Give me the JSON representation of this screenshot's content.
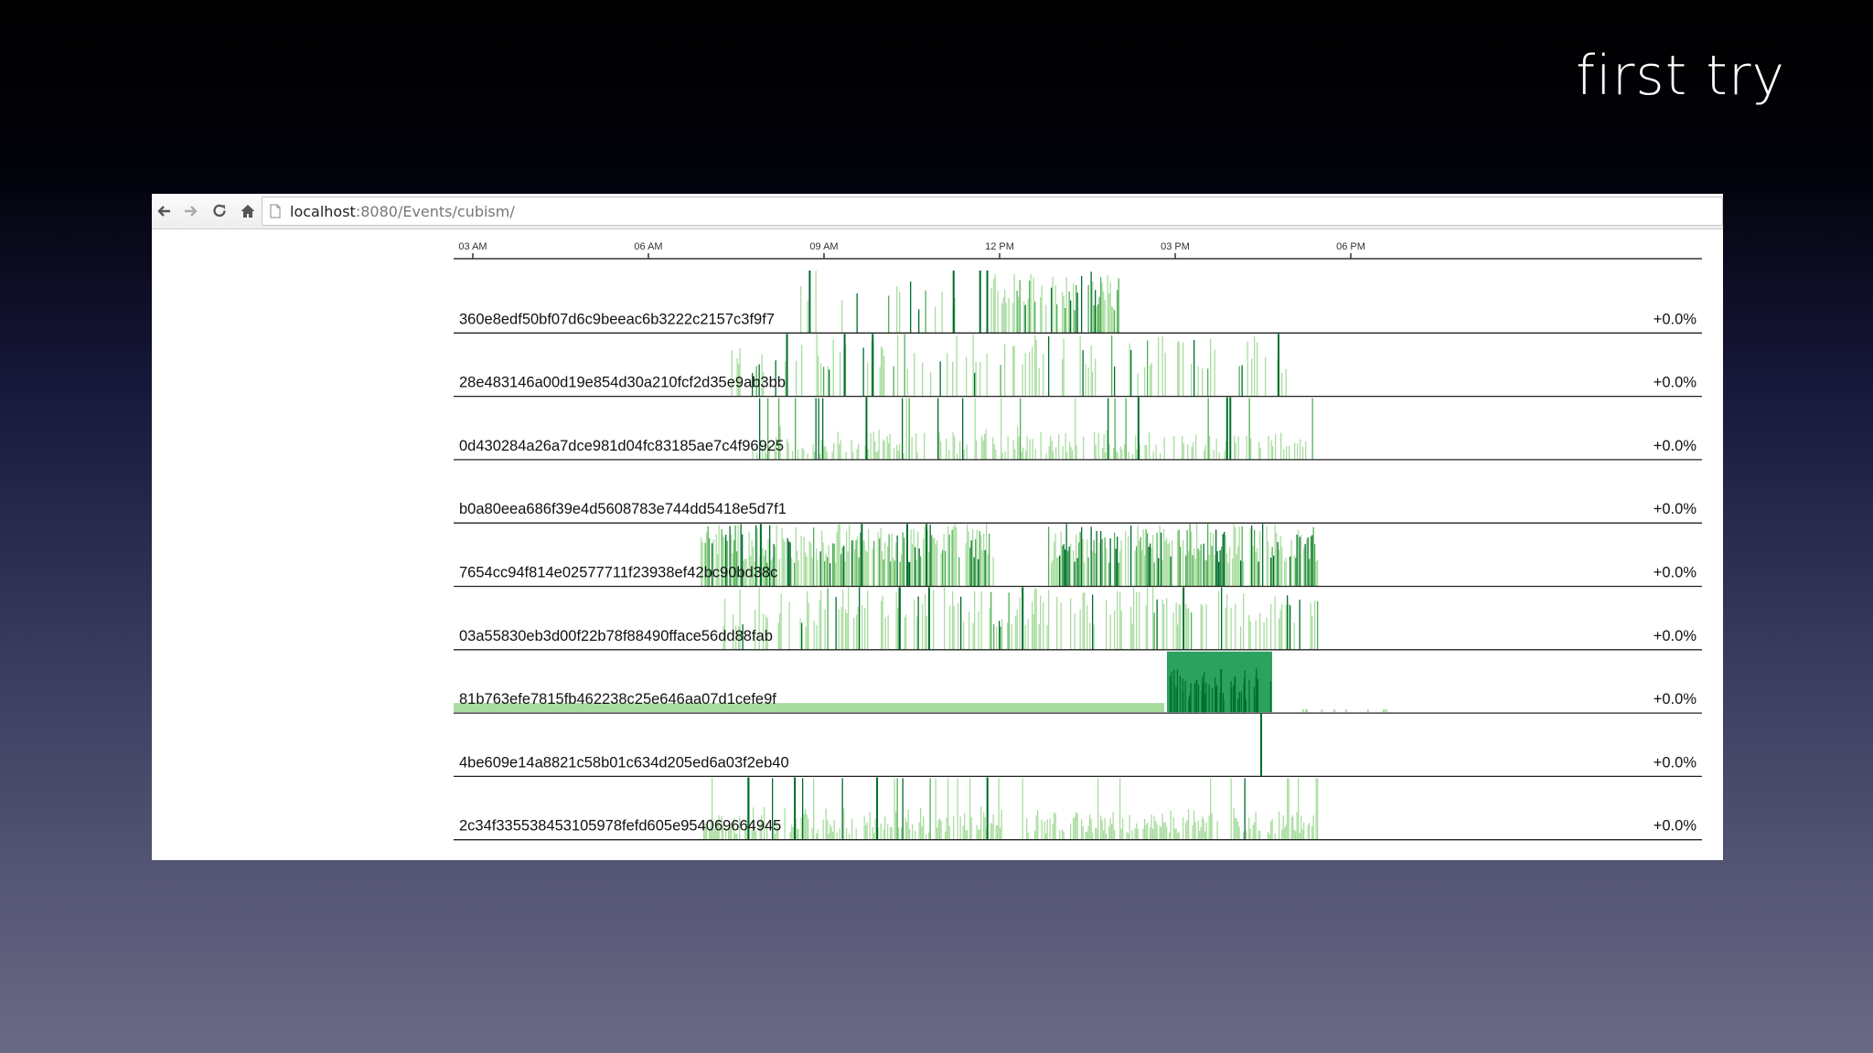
{
  "slide": {
    "title": "first try"
  },
  "browser": {
    "url_host": "localhost",
    "url_rest": ":8080/Events/cubism/",
    "icons": {
      "back": "arrow-left-icon",
      "forward": "arrow-right-icon",
      "reload": "reload-icon",
      "home": "home-icon",
      "page": "page-icon"
    }
  },
  "colors": {
    "light_green": "#a9dda0",
    "mid_green": "#52b055",
    "dark_green": "#006d2c",
    "accent": "#2ca25f"
  },
  "chart_data": {
    "type": "horizon",
    "x_ticks": [
      "03 AM",
      "06 AM",
      "09 AM",
      "12 PM",
      "03 PM",
      "06 PM"
    ],
    "series": [
      {
        "name": "360e8edf50bf07d6c9beeac6b3222c2157c3f9f7",
        "change": "+0.0%"
      },
      {
        "name": "28e483146a00d19e854d30a210fcf2d35e9ab3bb",
        "change": "+0.0%"
      },
      {
        "name": "0d430284a26a7dce981d04fc83185ae7c4f96925",
        "change": "+0.0%"
      },
      {
        "name": "b0a80eea686f39e4d5608783e744dd5418e5d7f1",
        "change": "+0.0%"
      },
      {
        "name": "7654cc94f814e02577711f23938ef42bc90bd38c",
        "change": "+0.0%"
      },
      {
        "name": "03a55830eb3d00f22b78f88490fface56dd88fab",
        "change": "+0.0%"
      },
      {
        "name": "81b763efe7815fb462238c25e646aa07d1cefe9f",
        "change": "+0.0%"
      },
      {
        "name": "4be609e14a8821c58b01c634d205ed6a03f2eb40",
        "change": "+0.0%"
      },
      {
        "name": "2c34f335538453105978fefd605e954069664945",
        "change": "+0.0%"
      }
    ]
  }
}
